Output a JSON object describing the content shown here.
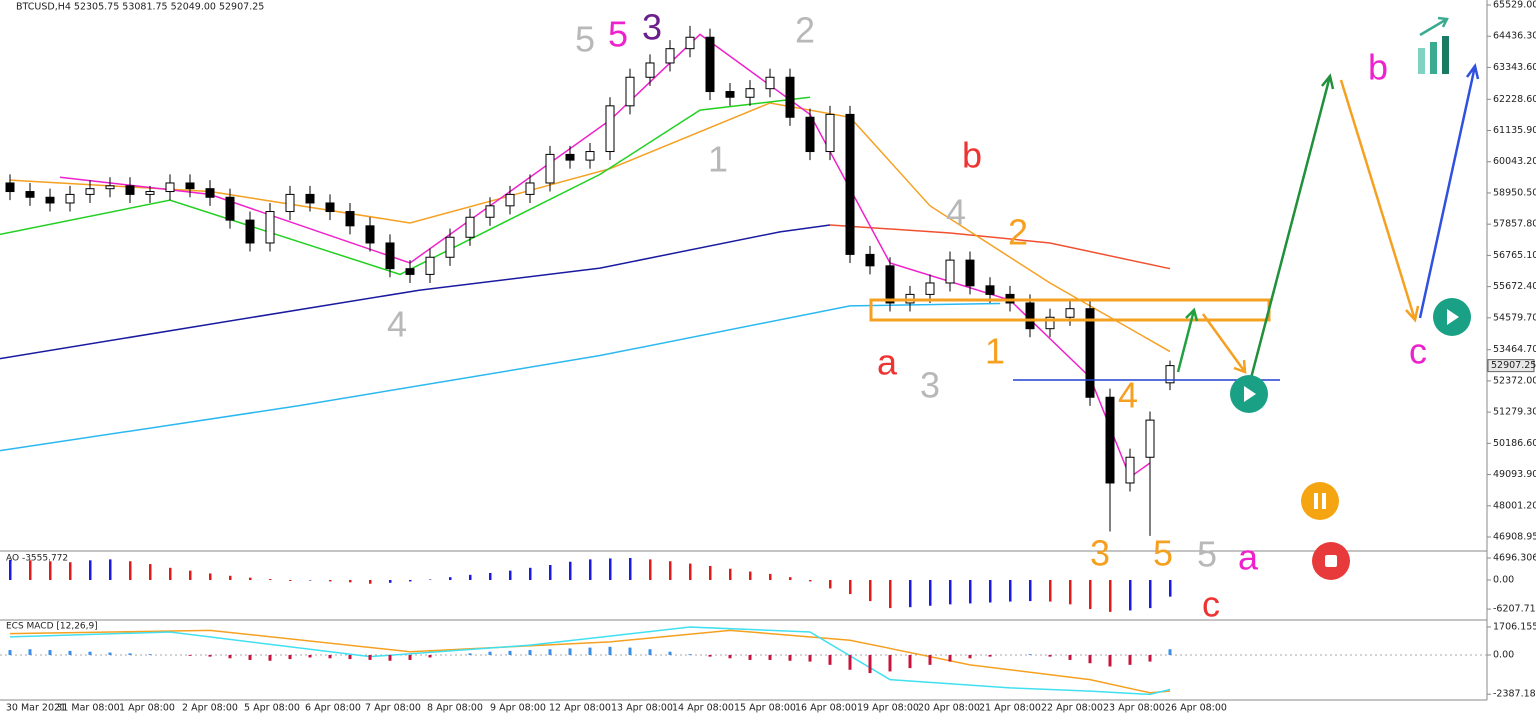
{
  "chart_data": {
    "type": "candlestick",
    "header": "BTCUSD,H4  52305.75 53081.75 52049.00 52907.25",
    "ylim": [
      46419,
      65704
    ],
    "yticks": [
      {
        "value": 65529,
        "label": "65529.00"
      },
      {
        "value": 64436.3,
        "label": "64436.30"
      },
      {
        "value": 63343.6,
        "label": "63343.60"
      },
      {
        "value": 62228.6,
        "label": "62228.60"
      },
      {
        "value": 61135.9,
        "label": "61135.90"
      },
      {
        "value": 60043.2,
        "label": "60043.20"
      },
      {
        "value": 58950.5,
        "label": "58950.50"
      },
      {
        "value": 57857.8,
        "label": "57857.80"
      },
      {
        "value": 56765.1,
        "label": "56765.10"
      },
      {
        "value": 55672.4,
        "label": "55672.40"
      },
      {
        "value": 54579.7,
        "label": "54579.70"
      },
      {
        "value": 53464.7,
        "label": "53464.70"
      },
      {
        "value": 52372,
        "label": "52372.00"
      },
      {
        "value": 51279.3,
        "label": "51279.30"
      },
      {
        "value": 50186.6,
        "label": "50186.60"
      },
      {
        "value": 49093.9,
        "label": "49093.90"
      },
      {
        "value": 48001.2,
        "label": "48001.20"
      },
      46908.95
    ],
    "x_labels": [
      "30 Mar 2021",
      "31 Mar 08:00",
      "1 Apr 08:00",
      "2 Apr 08:00",
      "5 Apr 08:00",
      "6 Apr 08:00",
      "7 Apr 08:00",
      "8 Apr 08:00",
      "9 Apr 08:00",
      "12 Apr 08:00",
      "13 Apr 08:00",
      "14 Apr 08:00",
      "15 Apr 08:00",
      "16 Apr 08:00",
      "19 Apr 08:00",
      "20 Apr 08:00",
      "21 Apr 08:00",
      "22 Apr 08:00",
      "23 Apr 08:00",
      "26 Apr 08:00"
    ],
    "open": [
      59300,
      59000,
      58800,
      58600,
      58900,
      59100,
      59200,
      58900,
      59000,
      59300,
      59100,
      58800,
      58000,
      57200,
      58300,
      58900,
      58600,
      58300,
      57800,
      57200,
      56300,
      56100,
      56700,
      57400,
      58100,
      58500,
      58900,
      59300,
      60300,
      60100,
      60400,
      62000,
      63000,
      63500,
      64000,
      64400,
      62500,
      62300,
      62600,
      63000,
      61600,
      60400,
      61700,
      56800,
      56400,
      55100,
      55400,
      55800,
      56600,
      55700,
      55400,
      55100,
      54200,
      54600,
      54900,
      51800,
      48800,
      49700,
      52305.75
    ],
    "high": [
      59600,
      59300,
      59100,
      59200,
      59400,
      59500,
      59500,
      59200,
      59600,
      59600,
      59400,
      59100,
      58300,
      58600,
      59200,
      59200,
      58900,
      58600,
      58100,
      57500,
      56600,
      57000,
      57700,
      58400,
      58800,
      59200,
      59600,
      60600,
      60600,
      60700,
      62300,
      63300,
      63800,
      64300,
      64800,
      64700,
      62800,
      62900,
      63300,
      63300,
      61900,
      62000,
      62000,
      57100,
      56700,
      55700,
      56100,
      56900,
      56900,
      56000,
      55700,
      55400,
      54900,
      55200,
      55200,
      52100,
      50000,
      51300,
      53081.75
    ],
    "low": [
      58700,
      58500,
      58300,
      58300,
      58600,
      58800,
      58600,
      58600,
      58700,
      58800,
      58500,
      57700,
      56900,
      56900,
      58000,
      58300,
      58000,
      57500,
      56900,
      56000,
      55800,
      55800,
      56400,
      57100,
      57800,
      58200,
      58600,
      59000,
      59800,
      59800,
      60100,
      61700,
      62700,
      63200,
      63700,
      62200,
      62000,
      62000,
      62300,
      61300,
      60100,
      60100,
      56500,
      56100,
      54800,
      54800,
      55100,
      55500,
      55400,
      55100,
      54800,
      53900,
      53900,
      54300,
      51500,
      47100,
      48500,
      46950,
      52049
    ],
    "close": [
      59000,
      58800,
      58600,
      58900,
      59100,
      59200,
      58900,
      59000,
      59300,
      59100,
      58800,
      58000,
      57200,
      58300,
      58900,
      58600,
      58300,
      57800,
      57200,
      56300,
      56100,
      56700,
      57400,
      58100,
      58500,
      58900,
      59300,
      60300,
      60100,
      60400,
      62000,
      63000,
      63500,
      64000,
      64400,
      62500,
      62300,
      62600,
      63000,
      61600,
      60400,
      61700,
      56800,
      56400,
      55100,
      55400,
      55800,
      56600,
      55700,
      55400,
      55100,
      54200,
      54600,
      54900,
      51800,
      48800,
      49700,
      51000,
      52907.25
    ],
    "lines": [
      {
        "color": "#1a1aa0",
        "x": [
          -0.5,
          9.5,
          20.5,
          29.5,
          38.5,
          41
        ],
        "values": [
          53150,
          54300,
          55550,
          56320,
          57590,
          57830
        ]
      },
      {
        "color": "#f05030",
        "x": [
          41,
          47,
          52,
          58
        ],
        "values": [
          57830,
          57550,
          57200,
          56300
        ]
      },
      {
        "color": "#2ab8f0",
        "x": [
          -0.5,
          14.5,
          29.5,
          42,
          49.5
        ],
        "values": [
          49930,
          51510,
          53260,
          55000,
          55080
        ]
      },
      {
        "color": "#f5a020",
        "x": [
          0,
          10,
          20,
          30,
          38,
          42,
          46,
          52,
          58
        ],
        "values": [
          59400,
          59000,
          57900,
          59800,
          62100,
          61600,
          58500,
          55800,
          53400
        ]
      },
      {
        "color": "#22d022",
        "x": [
          -0.5,
          8,
          19.5,
          29.5,
          34.5,
          40
        ],
        "values": [
          57500,
          58700,
          56100,
          59600,
          61850,
          62300
        ]
      },
      {
        "color": "#ee22cc",
        "x": [
          2.5,
          10,
          20,
          30,
          34.5,
          40,
          44,
          50,
          54,
          56,
          57
        ],
        "values": [
          59500,
          58900,
          56500,
          61500,
          64500,
          61700,
          56500,
          55200,
          52500,
          49000,
          49500
        ]
      }
    ],
    "annotations": [
      {
        "text": "5",
        "color": "#b8b8b8"
      },
      {
        "text": "5",
        "color": "#ee22cc"
      },
      {
        "text": "3",
        "color": "#6a1f8a"
      },
      {
        "text": "2",
        "color": "#b8b8b8"
      },
      {
        "text": "1",
        "color": "#b8b8b8"
      },
      {
        "text": "4",
        "color": "#b8b8b8"
      },
      {
        "text": "b",
        "color": "#ee3333"
      },
      {
        "text": "4",
        "color": "#b8b8b8"
      },
      {
        "text": "2",
        "color": "#f5a020"
      },
      {
        "text": "a",
        "color": "#ee3333"
      },
      {
        "text": "3",
        "color": "#b8b8b8"
      },
      {
        "text": "1",
        "color": "#f5a020"
      },
      {
        "text": "4",
        "color": "#f5a020"
      },
      {
        "text": "3",
        "color": "#f5a020"
      },
      {
        "text": "5",
        "color": "#f5a020"
      },
      {
        "text": "5",
        "color": "#b8b8b8"
      },
      {
        "text": "a",
        "color": "#ee22cc"
      },
      {
        "text": "c",
        "color": "#ee3333"
      },
      {
        "text": "b",
        "color": "#ee22cc"
      },
      {
        "text": "c",
        "color": "#ee22cc"
      }
    ],
    "ao": {
      "label": "AO -3555.772",
      "ylim": [
        -8540,
        6190
      ],
      "yticks": [
        {
          "value": 4696.306,
          "label": "4696.306"
        },
        {
          "value": 0,
          "label": "0.00"
        },
        {
          "value": -6207.716,
          "label": "-6207.716"
        }
      ],
      "values": [
        4300,
        4200,
        4000,
        3800,
        4200,
        4400,
        4000,
        3400,
        2600,
        2000,
        1400,
        900,
        500,
        200,
        -200,
        -100,
        -300,
        -500,
        -800,
        -600,
        -300,
        100,
        600,
        1100,
        1500,
        2000,
        2600,
        3200,
        3900,
        4400,
        4600,
        4700,
        4400,
        4000,
        3500,
        3000,
        2400,
        1800,
        1300,
        600,
        -300,
        -1800,
        -3000,
        -4500,
        -6000,
        -5800,
        -5500,
        -5200,
        -5000,
        -4800,
        -4600,
        -4500,
        -4600,
        -5200,
        -6200,
        -6800,
        -6500,
        -6000,
        -3555.772
      ]
    },
    "macd": {
      "label": "ECS MACD [12,26,9]",
      "ylim": [
        -2740,
        2130
      ],
      "yticks": [
        {
          "value": 1706.155,
          "label": "1706.155"
        },
        {
          "value": 0,
          "label": "0.00"
        },
        -2387.1837
      ],
      "values": [
        300,
        350,
        300,
        250,
        200,
        150,
        100,
        50,
        0,
        -50,
        -100,
        -200,
        -300,
        -350,
        -250,
        -150,
        -200,
        -250,
        -300,
        -350,
        -300,
        -150,
        0,
        100,
        200,
        250,
        300,
        350,
        400,
        450,
        500,
        450,
        350,
        200,
        50,
        -100,
        -200,
        -300,
        -300,
        -350,
        -400,
        -600,
        -900,
        -1100,
        -1000,
        -800,
        -600,
        -400,
        -200,
        -100,
        0,
        50,
        -100,
        -300,
        -500,
        -700,
        -600,
        -400,
        350
      ],
      "lines": [
        {
          "color": "#f5a020",
          "x": [
            0,
            10,
            20,
            30,
            36,
            42,
            48,
            54,
            57,
            58
          ],
          "values": [
            1300,
            1500,
            200,
            800,
            1500,
            900,
            -600,
            -1500,
            -2300,
            -2200
          ]
        },
        {
          "color": "#40e0f0",
          "x": [
            0,
            8,
            18,
            26,
            34,
            40,
            44,
            50,
            54,
            57,
            58
          ],
          "values": [
            1100,
            1400,
            -100,
            600,
            1700,
            1400,
            -1500,
            -2000,
            -2200,
            -2400,
            -2100
          ]
        }
      ]
    }
  }
}
